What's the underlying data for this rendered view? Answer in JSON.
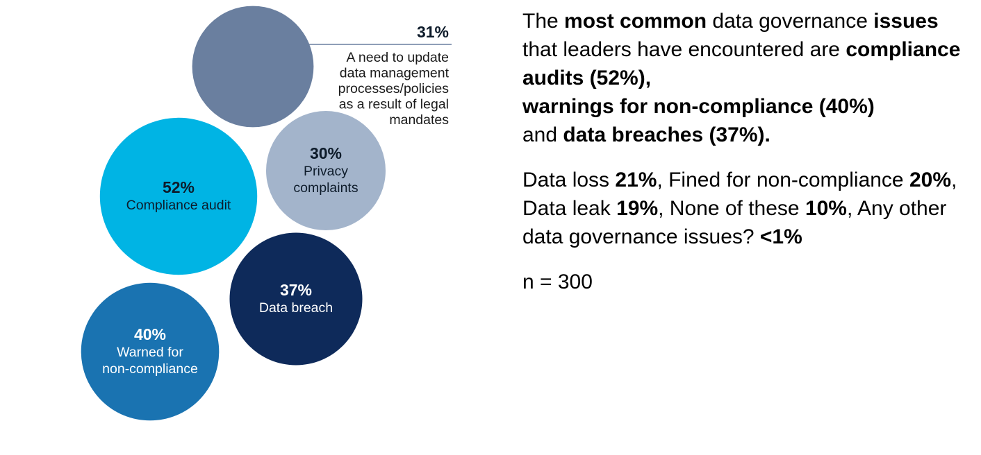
{
  "chart_data": {
    "type": "bubble",
    "title": "",
    "series": [
      {
        "category": "A need to update data management processes/policies as a result of legal mandates",
        "value": 31,
        "value_label": "31%",
        "label_lines": [
          "A need to update",
          "data management",
          "processes/policies",
          "as a result of legal",
          "mandates"
        ],
        "color": "#6a7f9f",
        "text_color": "#0d1b2a"
      },
      {
        "category": "Compliance audit",
        "value": 52,
        "value_label": "52%",
        "label_lines": [
          "Compliance audit"
        ],
        "color": "#00b4e4",
        "text_color": "#0d1b2a"
      },
      {
        "category": "Privacy complaints",
        "value": 30,
        "value_label": "30%",
        "label_lines": [
          "Privacy",
          "complaints"
        ],
        "color": "#a3b4cb",
        "text_color": "#0d1b2a"
      },
      {
        "category": "Data breach",
        "value": 37,
        "value_label": "37%",
        "label_lines": [
          "Data breach"
        ],
        "color": "#0e2a5a",
        "text_color": "#ffffff"
      },
      {
        "category": "Warned for non-compliance",
        "value": 40,
        "value_label": "40%",
        "label_lines": [
          "Warned for",
          "non-compliance"
        ],
        "color": "#1a73b1",
        "text_color": "#ffffff"
      }
    ]
  },
  "summary": {
    "p1": {
      "t1": "The ",
      "b1": "most common",
      "t2": " data governance ",
      "b2": "issues",
      "t3": " that leaders have encountered are ",
      "b3": "compliance audits (52%),",
      "b4": "warnings for non-compliance (40%)",
      "t4": " and ",
      "b5": "data breaches (37%)."
    },
    "p2": {
      "t1": "Data loss ",
      "b1": "21%",
      "t2": ", Fined for non-compliance ",
      "b2": "20%",
      "t3": ", Data leak ",
      "b3": "19%",
      "t4": ", None of these ",
      "b4": "10%",
      "t5": ", Any other data governance issues? ",
      "b5": "<1%"
    },
    "sample": "n = 300"
  }
}
